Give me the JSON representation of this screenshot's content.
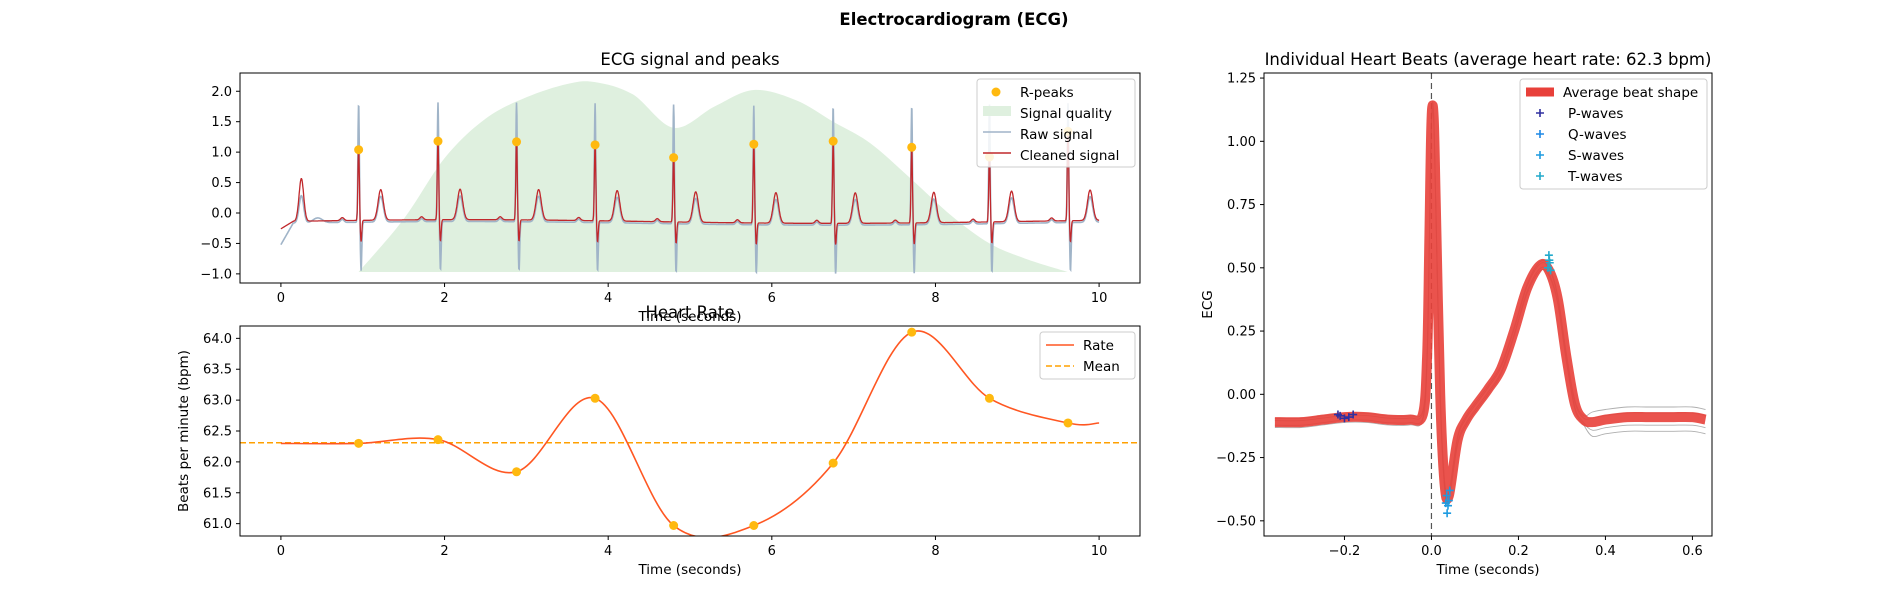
{
  "figure": {
    "suptitle": "Electrocardiogram (ECG)"
  },
  "chart_data": [
    {
      "type": "line",
      "title": "ECG signal and peaks",
      "xlabel": "Time (seconds)",
      "ylabel": "",
      "xlim": [
        -0.5,
        10.5
      ],
      "ylim": [
        -1.15,
        2.3
      ],
      "xticks": [
        0,
        2,
        4,
        6,
        8,
        10
      ],
      "yticks": [
        -1.0,
        -0.5,
        0.0,
        0.5,
        1.0,
        1.5,
        2.0
      ],
      "legend": "top-right",
      "legend_labels": [
        "R-peaks",
        "Signal quality",
        "Raw signal",
        "Cleaned signal"
      ],
      "colors": {
        "rpeaks": "#FFB90F",
        "quality": "#DFF0DF",
        "raw": "#A0B4C8",
        "cleaned": "#C0282C"
      },
      "r_peaks": {
        "name": "R-peaks",
        "x": [
          0.95,
          1.92,
          2.88,
          3.84,
          4.8,
          5.78,
          6.75,
          7.71,
          8.66,
          9.62
        ],
        "y": [
          1.04,
          1.18,
          1.17,
          1.12,
          0.91,
          1.13,
          1.18,
          1.08,
          0.92,
          1.34
        ]
      },
      "signal_quality": {
        "name": "Signal quality",
        "x": [
          0.95,
          1.5,
          2.0,
          2.5,
          3.0,
          3.5,
          3.84,
          4.3,
          4.8,
          5.3,
          5.78,
          6.3,
          6.75,
          7.2,
          7.71,
          8.2,
          8.66,
          9.1,
          9.62
        ],
        "y": [
          -0.97,
          -0.1,
          0.9,
          1.55,
          1.9,
          2.12,
          2.15,
          1.95,
          1.4,
          1.75,
          2.02,
          1.85,
          1.5,
          1.15,
          0.55,
          -0.05,
          -0.5,
          -0.75,
          -0.97
        ]
      },
      "raw_signal": {
        "name": "Raw signal",
        "baseline": -0.17,
        "r_tip": 1.96,
        "s_trough": -0.95,
        "t_height": 0.42
      },
      "cleaned_signal": {
        "name": "Cleaned signal",
        "baseline": -0.14,
        "t_height": 0.5
      }
    },
    {
      "type": "line",
      "title": "Heart Rate",
      "xlabel": "Time (seconds)",
      "ylabel": "Beats per minute (bpm)",
      "xlim": [
        -0.5,
        10.5
      ],
      "ylim": [
        60.8,
        64.2
      ],
      "xticks": [
        0,
        2,
        4,
        6,
        8,
        10
      ],
      "yticks": [
        61.0,
        61.5,
        62.0,
        62.5,
        63.0,
        63.5,
        64.0
      ],
      "legend": "top-right",
      "legend_labels": [
        "Rate",
        "Mean"
      ],
      "colors": {
        "rate": "#FF5722",
        "mean": "#FFA000",
        "points": "#FFB90F"
      },
      "points": {
        "x": [
          0.95,
          1.92,
          2.88,
          3.84,
          4.8,
          5.78,
          6.75,
          7.71,
          8.66,
          9.62
        ],
        "y": [
          62.3,
          62.36,
          61.84,
          63.03,
          60.97,
          60.97,
          61.98,
          64.1,
          63.03,
          62.63
        ]
      },
      "series": [
        {
          "name": "Rate",
          "x": [
            0,
            0.95,
            1.92,
            2.88,
            3.84,
            4.8,
            5.78,
            6.75,
            7.71,
            8.66,
            9.62,
            10
          ],
          "y": [
            62.3,
            62.3,
            62.36,
            61.84,
            63.03,
            60.97,
            60.97,
            61.98,
            64.1,
            63.03,
            62.63,
            62.63
          ]
        },
        {
          "name": "Mean",
          "value": 62.31
        }
      ]
    },
    {
      "type": "line",
      "title": "Individual Heart Beats (average heart rate: 62.3 bpm)",
      "xlabel": "Time (seconds)",
      "ylabel": "ECG",
      "xlim": [
        -0.385,
        0.645
      ],
      "ylim": [
        -0.56,
        1.27
      ],
      "xticks": [
        -0.2,
        0.0,
        0.2,
        0.4,
        0.6
      ],
      "yticks": [
        -0.5,
        -0.25,
        0.0,
        0.25,
        0.5,
        0.75,
        1.0,
        1.25
      ],
      "legend": "top-right",
      "legend_labels": [
        "Average beat shape",
        "P-waves",
        "Q-waves",
        "S-waves",
        "T-waves"
      ],
      "colors": {
        "avg": "#E8403A",
        "p": "#3030A0",
        "q": "#1E88E5",
        "s": "#1E9BE0",
        "t": "#22AACC",
        "beats": "#9A9A9A"
      },
      "average_beat": {
        "name": "Average beat shape",
        "x": [
          -0.36,
          -0.3,
          -0.25,
          -0.2,
          -0.15,
          -0.1,
          -0.05,
          -0.02,
          -0.01,
          -0.005,
          0.0,
          0.005,
          0.01,
          0.02,
          0.03,
          0.04,
          0.06,
          0.08,
          0.1,
          0.13,
          0.16,
          0.19,
          0.22,
          0.25,
          0.27,
          0.29,
          0.31,
          0.33,
          0.35,
          0.37,
          0.4,
          0.45,
          0.5,
          0.55,
          0.6,
          0.63
        ],
        "y": [
          -0.11,
          -0.11,
          -0.1,
          -0.09,
          -0.09,
          -0.1,
          -0.1,
          -0.08,
          0.15,
          0.6,
          1.08,
          1.1,
          0.75,
          0.0,
          -0.35,
          -0.4,
          -0.18,
          -0.1,
          -0.05,
          0.02,
          0.1,
          0.25,
          0.42,
          0.51,
          0.49,
          0.38,
          0.15,
          -0.04,
          -0.1,
          -0.11,
          -0.1,
          -0.09,
          -0.09,
          -0.09,
          -0.09,
          -0.1
        ]
      },
      "p_waves": {
        "name": "P-waves",
        "x": [
          -0.21,
          -0.2,
          -0.19,
          -0.18,
          -0.215
        ],
        "y": [
          -0.085,
          -0.095,
          -0.09,
          -0.08,
          -0.08
        ]
      },
      "q_waves": {
        "name": "Q-waves",
        "x": [],
        "y": []
      },
      "s_waves": {
        "name": "S-waves",
        "x": [
          0.035,
          0.04,
          0.038,
          0.042,
          0.036,
          0.033
        ],
        "y": [
          -0.4,
          -0.42,
          -0.44,
          -0.38,
          -0.47,
          -0.43
        ]
      },
      "t_waves": {
        "name": "T-waves",
        "x": [
          0.27,
          0.272,
          0.268,
          0.274,
          0.271
        ],
        "y": [
          0.55,
          0.52,
          0.5,
          0.49,
          0.53
        ]
      }
    }
  ]
}
